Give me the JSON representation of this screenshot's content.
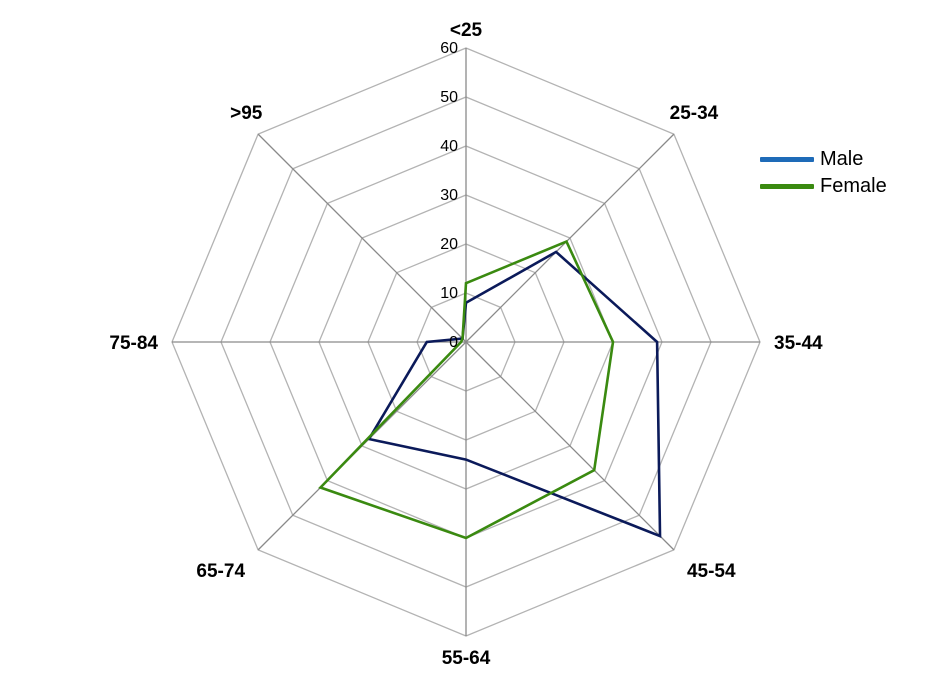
{
  "chart_data": {
    "type": "radar",
    "title": "",
    "categories": [
      "<25",
      "25-34",
      "35-44",
      "45-54",
      "55-64",
      "65-74",
      "75-84",
      ">95"
    ],
    "rlim": [
      0,
      60
    ],
    "ticks": [
      "0",
      "10",
      "20",
      "30",
      "40",
      "50",
      "60"
    ],
    "grid": true,
    "legend_position": "right",
    "series": [
      {
        "name": "Male",
        "values": [
          8,
          26,
          39,
          56,
          24,
          28,
          8,
          1
        ],
        "color": "#0b1a5a",
        "legend_color": "#1e6bb8"
      },
      {
        "name": "Female",
        "values": [
          12,
          29,
          30,
          37,
          40,
          42,
          1,
          1
        ],
        "color": "#3a8a10",
        "legend_color": "#3a8a10"
      }
    ]
  }
}
